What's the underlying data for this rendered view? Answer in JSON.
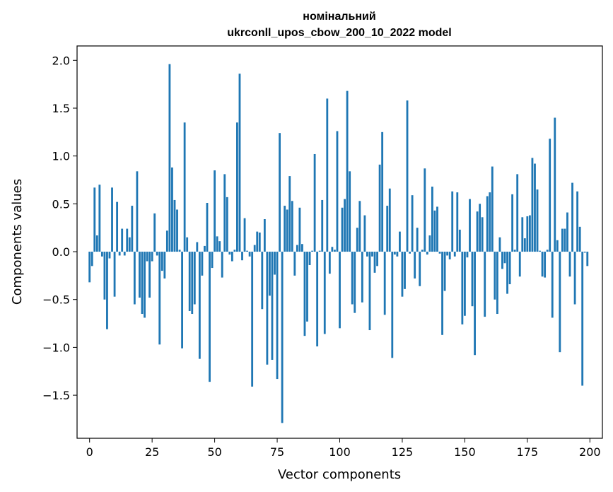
{
  "chart_data": {
    "type": "bar",
    "title_line1": "номінальний",
    "title_line2": "ukrconll_upos_cbow_200_10_2022 model",
    "xlabel": "Vector components",
    "ylabel": "Components values",
    "xlim": [
      -5,
      205
    ],
    "ylim": [
      -1.95,
      2.15
    ],
    "xticks": [
      0,
      25,
      50,
      75,
      100,
      125,
      150,
      175,
      200
    ],
    "yticks": [
      2.0,
      1.5,
      1.0,
      0.5,
      0.0,
      -0.5,
      -1.0,
      -1.5
    ],
    "ytick_labels": [
      "2.0",
      "1.5",
      "1.0",
      "0.5",
      "0.0",
      "−0.5",
      "−1.0",
      "−1.5"
    ],
    "bar_color": "#1f77b4",
    "grid": false,
    "legend": "none",
    "values": [
      -0.32,
      -0.15,
      0.67,
      0.17,
      0.7,
      -0.05,
      -0.5,
      -0.81,
      -0.07,
      0.67,
      -0.47,
      0.52,
      -0.04,
      0.24,
      -0.04,
      0.24,
      0.15,
      0.48,
      -0.55,
      0.84,
      -0.48,
      -0.65,
      -0.69,
      -0.1,
      -0.48,
      -0.1,
      0.4,
      -0.04,
      -0.97,
      -0.2,
      -0.28,
      0.22,
      1.96,
      0.88,
      0.54,
      0.44,
      0.02,
      -1.01,
      1.35,
      0.15,
      -0.62,
      -0.65,
      -0.55,
      0.1,
      -1.12,
      -0.25,
      0.06,
      0.51,
      -1.36,
      -0.17,
      0.85,
      0.16,
      0.11,
      -0.27,
      0.81,
      0.57,
      -0.03,
      -0.1,
      0.02,
      1.35,
      1.86,
      -0.09,
      0.35,
      0.01,
      -0.05,
      -1.41,
      0.07,
      0.21,
      0.2,
      -0.6,
      0.34,
      -1.18,
      -0.46,
      -1.13,
      -0.24,
      -1.33,
      1.24,
      -1.79,
      0.48,
      0.44,
      0.79,
      0.53,
      -0.25,
      0.07,
      0.46,
      0.08,
      -0.88,
      -0.73,
      -0.14,
      0.01,
      1.02,
      -0.99,
      0.01,
      0.54,
      -0.86,
      1.6,
      -0.23,
      0.05,
      0.02,
      1.26,
      -0.8,
      0.46,
      0.55,
      1.68,
      0.84,
      -0.55,
      -0.64,
      0.25,
      0.53,
      -0.53,
      0.38,
      -0.05,
      -0.82,
      -0.05,
      -0.22,
      -0.15,
      0.91,
      1.25,
      -0.66,
      0.48,
      0.66,
      -1.11,
      -0.03,
      -0.05,
      0.21,
      -0.47,
      -0.39,
      1.58,
      -0.02,
      0.59,
      -0.28,
      0.25,
      -0.36,
      0.02,
      0.87,
      -0.03,
      0.17,
      0.68,
      0.43,
      0.47,
      -0.02,
      -0.87,
      -0.41,
      -0.04,
      -0.08,
      0.63,
      -0.05,
      0.62,
      0.23,
      -0.76,
      -0.67,
      -0.06,
      0.55,
      -0.57,
      -1.08,
      0.42,
      0.5,
      0.36,
      -0.68,
      0.58,
      0.62,
      0.89,
      -0.5,
      -0.65,
      0.15,
      -0.18,
      -0.12,
      -0.44,
      -0.34,
      0.6,
      0.02,
      0.81,
      -0.26,
      0.36,
      0.14,
      0.37,
      0.38,
      0.98,
      0.92,
      0.65,
      0.01,
      -0.26,
      -0.27,
      0.02,
      1.18,
      -0.69,
      1.4,
      0.12,
      -1.05,
      0.24,
      0.24,
      0.41,
      -0.26,
      0.72,
      -0.55,
      0.63,
      0.26,
      -1.4,
      -0.01,
      -0.15
    ]
  }
}
